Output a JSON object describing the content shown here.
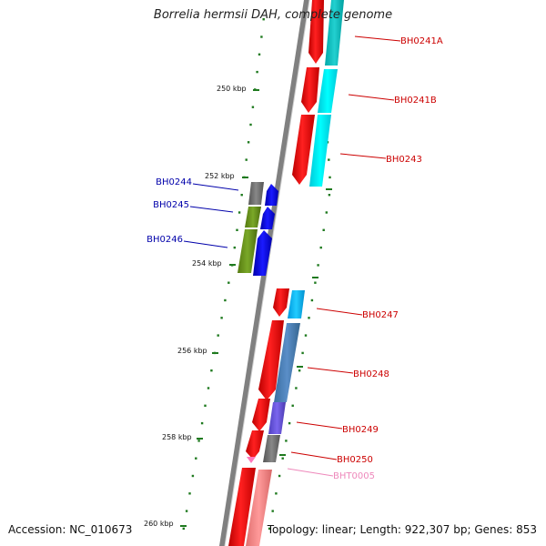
{
  "title": "Borrelia hermsii DAH, complete genome",
  "accession": "Accession: NC_010673",
  "topology": "Topology: linear; Length: 922,307 bp; Genes: 853",
  "colors": {
    "backbone": "#7a7a7a",
    "tick": "#1f7a1f",
    "red": "#ff0000",
    "blue": "#0000ee",
    "pink": "#ff88cc",
    "label_red": "#cc0000",
    "label_blue": "#0000aa",
    "label_pink": "#ee88bb"
  },
  "scale_labels": [
    "250 kbp",
    "252 kbp",
    "254 kbp",
    "256 kbp",
    "258 kbp",
    "260 kbp"
  ],
  "gene_labels": [
    {
      "id": "BH0241A",
      "color": "red"
    },
    {
      "id": "BH0241B",
      "color": "red"
    },
    {
      "id": "BH0243",
      "color": "red"
    },
    {
      "id": "BH0244",
      "color": "blue"
    },
    {
      "id": "BH0245",
      "color": "blue"
    },
    {
      "id": "BH0246",
      "color": "blue"
    },
    {
      "id": "BH0247",
      "color": "red"
    },
    {
      "id": "BH0248",
      "color": "red"
    },
    {
      "id": "BH0249",
      "color": "red"
    },
    {
      "id": "BH0250",
      "color": "red"
    },
    {
      "id": "BHT0005",
      "color": "pink"
    }
  ]
}
